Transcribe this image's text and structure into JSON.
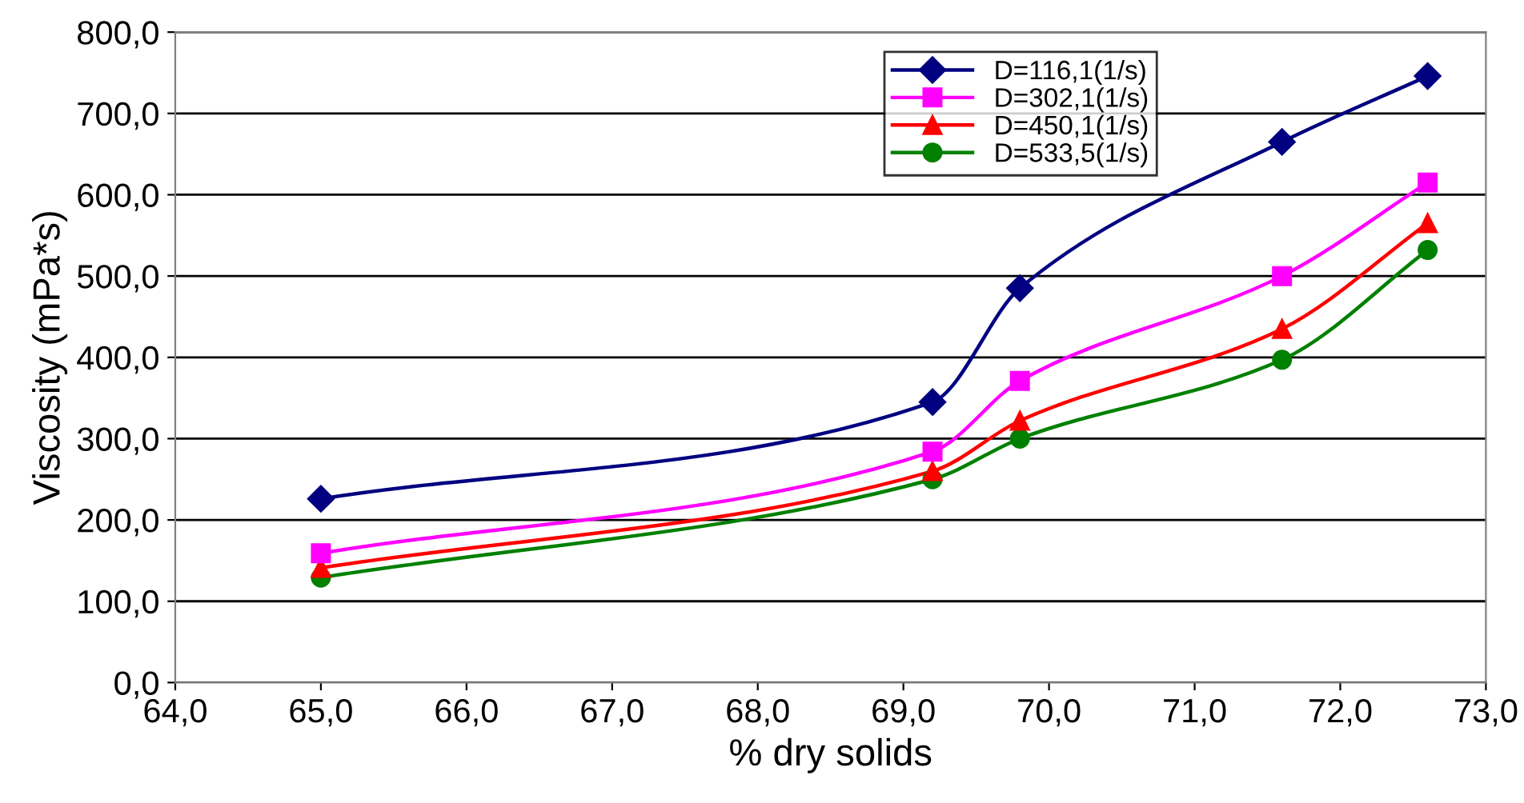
{
  "chart_data": {
    "type": "line",
    "xlabel": "% dry solids",
    "ylabel": "Viscosity (mPa*s)",
    "x": [
      65.0,
      69.2,
      69.8,
      71.6,
      72.6
    ],
    "series": [
      {
        "name": "D=116,1(1/s)",
        "color": "#000080",
        "marker": "diamond",
        "values": [
          226,
          345,
          485,
          665,
          746
        ]
      },
      {
        "name": "D=302,1(1/s)",
        "color": "#ff00ff",
        "marker": "square",
        "values": [
          159,
          284,
          371,
          500,
          615
        ]
      },
      {
        "name": "D=450,1(1/s)",
        "color": "#ff0000",
        "marker": "triangle",
        "values": [
          141,
          260,
          322,
          435,
          565
        ]
      },
      {
        "name": "D=533,5(1/s)",
        "color": "#008000",
        "marker": "circle",
        "values": [
          129,
          250,
          300,
          397,
          532
        ]
      }
    ],
    "xlim": [
      64,
      73
    ],
    "ylim": [
      0,
      800
    ],
    "xticks": [
      {
        "value": 64,
        "label": "64,0"
      },
      {
        "value": 65,
        "label": "65,0"
      },
      {
        "value": 66,
        "label": "66,0"
      },
      {
        "value": 67,
        "label": "67,0"
      },
      {
        "value": 68,
        "label": "68,0"
      },
      {
        "value": 69,
        "label": "69,0"
      },
      {
        "value": 70,
        "label": "70,0"
      },
      {
        "value": 71,
        "label": "71,0"
      },
      {
        "value": 72,
        "label": "72,0"
      },
      {
        "value": 73,
        "label": "73,0"
      }
    ],
    "yticks": [
      {
        "value": 0,
        "label": "0,0"
      },
      {
        "value": 100,
        "label": "100,0"
      },
      {
        "value": 200,
        "label": "200,0"
      },
      {
        "value": 300,
        "label": "300,0"
      },
      {
        "value": 400,
        "label": "400,0"
      },
      {
        "value": 500,
        "label": "500,0"
      },
      {
        "value": 600,
        "label": "600,0"
      },
      {
        "value": 700,
        "label": "700,0"
      },
      {
        "value": 800,
        "label": "800,0"
      }
    ],
    "grid": "y",
    "legend": "top",
    "line_style": "solid"
  }
}
